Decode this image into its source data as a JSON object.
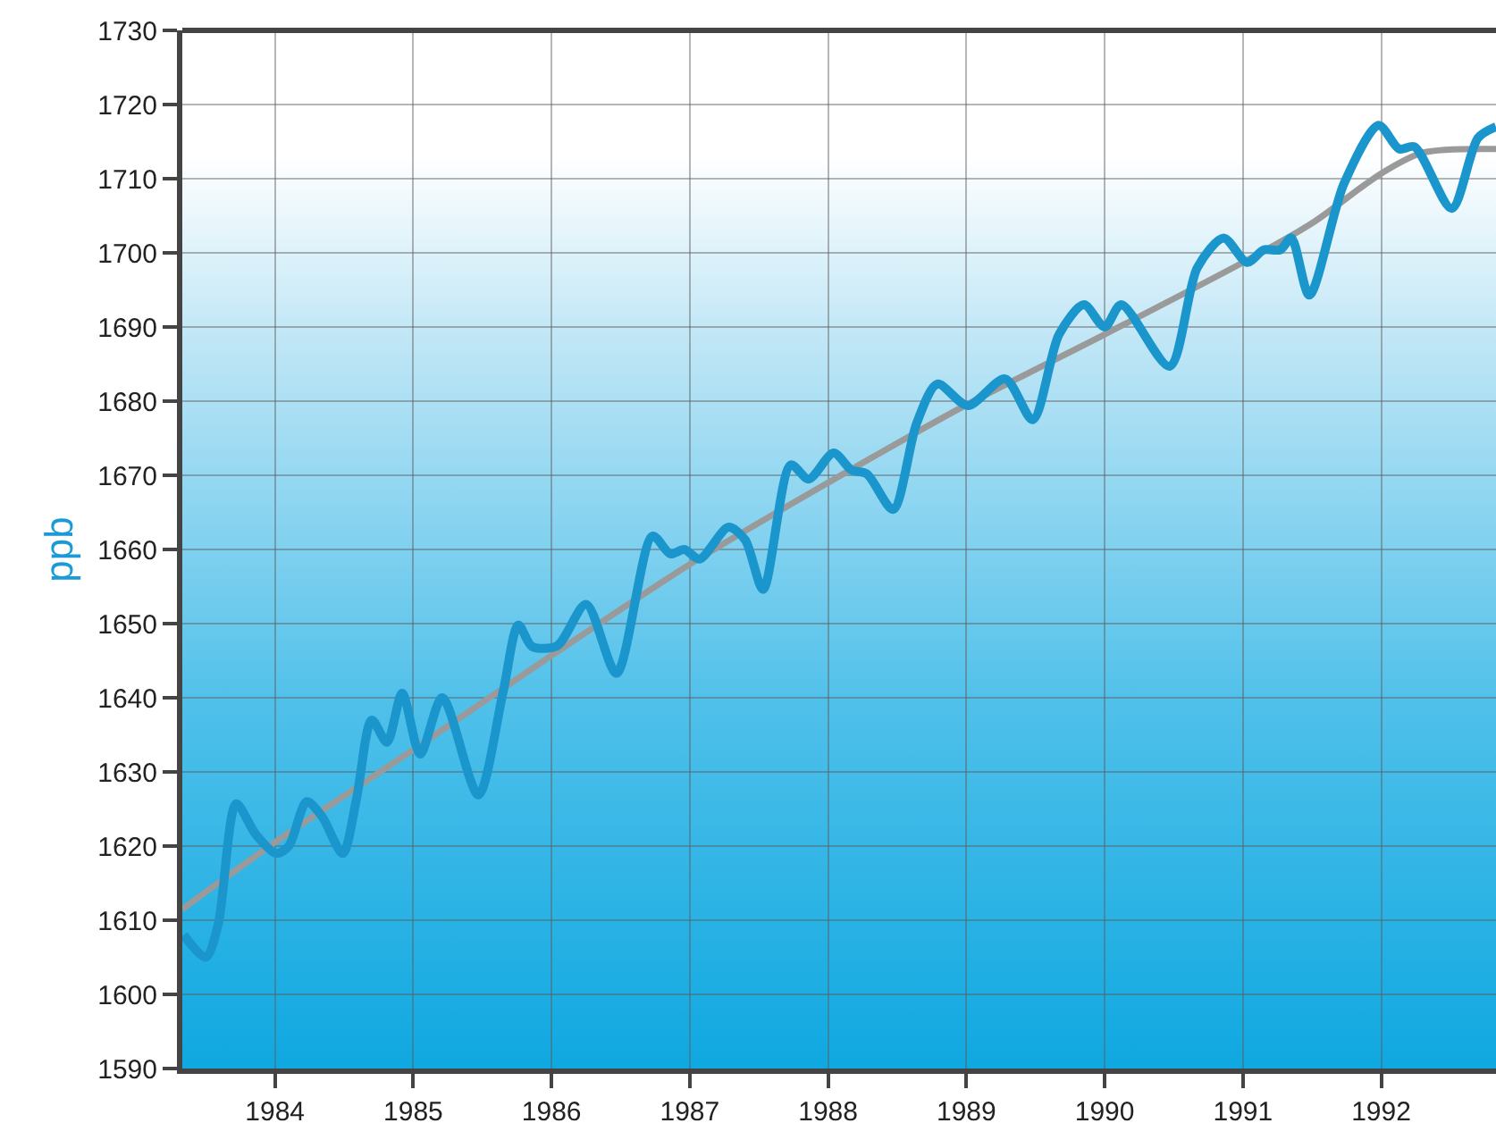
{
  "chart_data": {
    "type": "line",
    "ylabel": "ppb",
    "xlim": [
      1983.33,
      1992.83
    ],
    "ylim": [
      1590,
      1730
    ],
    "xticks": [
      1984,
      1985,
      1986,
      1987,
      1988,
      1989,
      1990,
      1991,
      1992
    ],
    "yticks": [
      1590,
      1600,
      1610,
      1620,
      1630,
      1640,
      1650,
      1660,
      1670,
      1680,
      1690,
      1700,
      1710,
      1720,
      1730
    ],
    "grid": true,
    "marker": "none",
    "line_style": "solid",
    "series": [
      {
        "color": "#9a9a9a",
        "x": [
          1983.33,
          1984,
          1985,
          1986,
          1987,
          1988,
          1989,
          1990,
          1991,
          1991.5,
          1992,
          1992.3,
          1992.83
        ],
        "values": [
          1611.5,
          1620.5,
          1633,
          1645.7,
          1658,
          1669,
          1679.5,
          1689,
          1698.7,
          1704,
          1710.7,
          1713.5,
          1714
        ]
      },
      {
        "color": "#1a96cc",
        "x": [
          1983.34,
          1983.5,
          1983.59,
          1983.72,
          1983.86,
          1984.01,
          1984.1,
          1984.23,
          1984.34,
          1984.49,
          1984.59,
          1984.7,
          1984.81,
          1984.92,
          1985.05,
          1985.21,
          1985.47,
          1985.65,
          1985.76,
          1985.86,
          1986.04,
          1986.25,
          1986.47,
          1986.73,
          1986.86,
          1986.96,
          1987.07,
          1987.28,
          1987.4,
          1987.53,
          1987.73,
          1987.86,
          1988.04,
          1988.17,
          1988.28,
          1988.47,
          1988.64,
          1988.79,
          1989.01,
          1989.28,
          1989.48,
          1989.67,
          1989.85,
          1990,
          1990.12,
          1990.47,
          1990.67,
          1990.86,
          1991.03,
          1991.15,
          1991.27,
          1991.35,
          1991.48,
          1991.73,
          1991.98,
          1992.13,
          1992.24,
          1992.51,
          1992.7,
          1992.83
        ],
        "values": [
          1608,
          1605,
          1609.5,
          1625.7,
          1621.6,
          1619,
          1620,
          1626,
          1624,
          1619,
          1626.4,
          1637,
          1634,
          1640.6,
          1632.4,
          1640,
          1626.9,
          1640.8,
          1649.8,
          1646.9,
          1647,
          1652.6,
          1643.3,
          1661.8,
          1659.4,
          1660,
          1658.7,
          1663,
          1661.3,
          1654.6,
          1671.4,
          1669.5,
          1673,
          1670.7,
          1670.2,
          1665.4,
          1677,
          1682.3,
          1679.4,
          1683,
          1677.5,
          1689,
          1693,
          1690,
          1693,
          1684.7,
          1698,
          1702,
          1698.7,
          1700.4,
          1700.4,
          1702,
          1694.3,
          1709.3,
          1717.2,
          1714,
          1714.3,
          1706,
          1715.5,
          1717
        ]
      }
    ]
  }
}
